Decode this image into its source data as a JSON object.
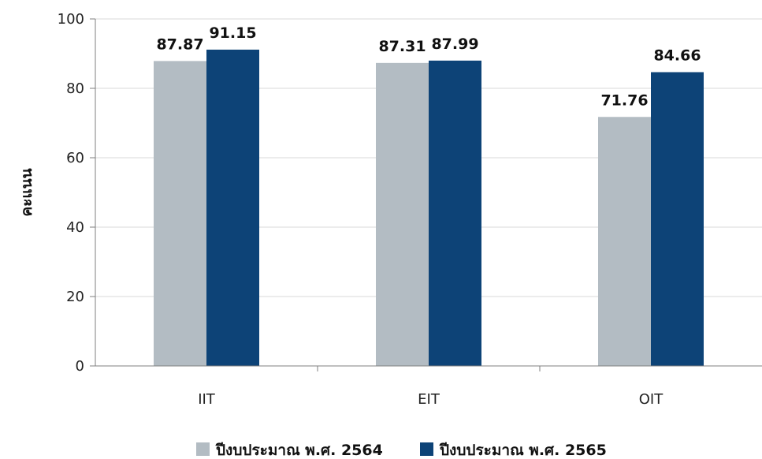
{
  "chart_data": {
    "type": "bar",
    "categories": [
      "IIT",
      "EIT",
      "OIT"
    ],
    "series": [
      {
        "name": "ปีงบประมาณ พ.ศ. 2564",
        "values": [
          87.87,
          87.31,
          71.76
        ],
        "color": "#b3bcc3"
      },
      {
        "name": "ปีงบประมาณ พ.ศ. 2565",
        "values": [
          91.15,
          87.99,
          84.66
        ],
        "color": "#0d4377"
      }
    ],
    "value_labels": [
      [
        "87.87",
        "87.31",
        "71.76"
      ],
      [
        "91.15",
        "87.99",
        "84.66"
      ]
    ],
    "ylabel": "คะแนน",
    "xlabel": "",
    "ylim": [
      0,
      100
    ],
    "yticks": [
      0,
      20,
      40,
      60,
      80,
      100
    ],
    "grid": true,
    "legend_position": "bottom"
  }
}
